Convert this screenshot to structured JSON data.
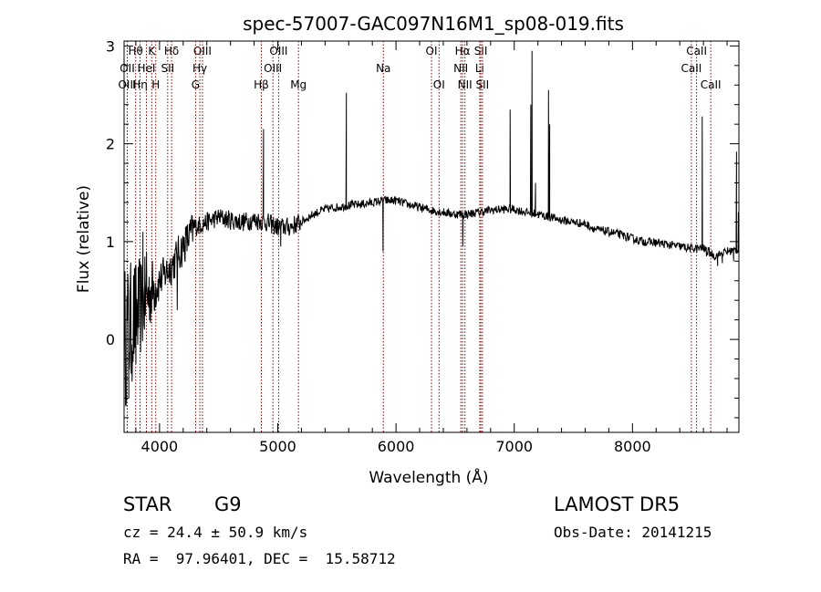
{
  "chart_data": {
    "type": "line",
    "title": "spec-57007-GAC097N16M1_sp08-019.fits",
    "xlabel": "Wavelength (Å)",
    "ylabel": "Flux (relative)",
    "xlim": [
      3700,
      8900
    ],
    "ylim": [
      -0.95,
      3.05
    ],
    "x_ticks": [
      4000,
      5000,
      6000,
      7000,
      8000
    ],
    "y_ticks": [
      0,
      1,
      2,
      3
    ],
    "grid": false,
    "legend": "none",
    "line_color": "#000000",
    "marker_color": "#8b0000",
    "continuum": [
      [
        3700,
        0.0
      ],
      [
        3800,
        0.25
      ],
      [
        3900,
        0.45
      ],
      [
        4000,
        0.6
      ],
      [
        4100,
        0.75
      ],
      [
        4200,
        0.95
      ],
      [
        4300,
        1.15
      ],
      [
        4400,
        1.2
      ],
      [
        4500,
        1.25
      ],
      [
        4600,
        1.22
      ],
      [
        4700,
        1.2
      ],
      [
        4800,
        1.22
      ],
      [
        4900,
        1.2
      ],
      [
        5000,
        1.15
      ],
      [
        5100,
        1.15
      ],
      [
        5200,
        1.2
      ],
      [
        5300,
        1.28
      ],
      [
        5400,
        1.33
      ],
      [
        5500,
        1.35
      ],
      [
        5600,
        1.37
      ],
      [
        5700,
        1.38
      ],
      [
        5800,
        1.4
      ],
      [
        5900,
        1.42
      ],
      [
        6000,
        1.42
      ],
      [
        6100,
        1.38
      ],
      [
        6200,
        1.35
      ],
      [
        6300,
        1.32
      ],
      [
        6400,
        1.3
      ],
      [
        6500,
        1.28
      ],
      [
        6600,
        1.28
      ],
      [
        6700,
        1.3
      ],
      [
        6800,
        1.32
      ],
      [
        6900,
        1.33
      ],
      [
        7000,
        1.33
      ],
      [
        7100,
        1.3
      ],
      [
        7200,
        1.28
      ],
      [
        7300,
        1.25
      ],
      [
        7400,
        1.22
      ],
      [
        7500,
        1.2
      ],
      [
        7600,
        1.18
      ],
      [
        7700,
        1.12
      ],
      [
        7800,
        1.1
      ],
      [
        7900,
        1.07
      ],
      [
        8000,
        1.03
      ],
      [
        8100,
        1.0
      ],
      [
        8200,
        0.99
      ],
      [
        8300,
        0.97
      ],
      [
        8400,
        0.95
      ],
      [
        8500,
        0.93
      ],
      [
        8600,
        0.93
      ],
      [
        8700,
        0.85
      ],
      [
        8800,
        0.9
      ],
      [
        8900,
        0.92
      ]
    ],
    "features": [
      [
        3740,
        -0.6
      ],
      [
        3760,
        -0.35
      ],
      [
        3800,
        -0.25
      ],
      [
        3860,
        1.1
      ],
      [
        3890,
        0.9
      ],
      [
        4150,
        0.3
      ],
      [
        4880,
        2.15
      ],
      [
        5025,
        0.95
      ],
      [
        5580,
        2.52
      ],
      [
        5890,
        0.9
      ],
      [
        6565,
        0.95
      ],
      [
        6965,
        2.35
      ],
      [
        7140,
        2.4
      ],
      [
        7150,
        2.95
      ],
      [
        7180,
        1.6
      ],
      [
        7290,
        2.55
      ],
      [
        7300,
        2.2
      ],
      [
        8590,
        2.28
      ],
      [
        8625,
        0.85
      ],
      [
        8720,
        0.75
      ],
      [
        8760,
        0.78
      ],
      [
        8855,
        0.8
      ],
      [
        8880,
        1.92
      ],
      [
        8895,
        1.3
      ]
    ],
    "line_markers": [
      {
        "label": "Hθ",
        "wavelength": 3798,
        "row": 0
      },
      {
        "label": "OII",
        "wavelength": 3727,
        "row": 1
      },
      {
        "label": "OIII",
        "wavelength": 3727,
        "row": 2
      },
      {
        "label": "K",
        "wavelength": 3934,
        "row": 0
      },
      {
        "label": "HeI",
        "wavelength": 3889,
        "row": 1
      },
      {
        "label": "Hη",
        "wavelength": 3835,
        "row": 2
      },
      {
        "label": "H",
        "wavelength": 3968,
        "row": 2
      },
      {
        "label": "Hδ",
        "wavelength": 4102,
        "row": 0
      },
      {
        "label": "SII",
        "wavelength": 4069,
        "row": 1
      },
      {
        "label": "OIII",
        "wavelength": 4363,
        "row": 0
      },
      {
        "label": "Hγ",
        "wavelength": 4341,
        "row": 1
      },
      {
        "label": "G",
        "wavelength": 4305,
        "row": 2
      },
      {
        "label": "Hβ",
        "wavelength": 4861,
        "row": 2
      },
      {
        "label": "OIII",
        "wavelength": 5007,
        "row": 0
      },
      {
        "label": "OIII",
        "wavelength": 4959,
        "row": 1
      },
      {
        "label": "Mg",
        "wavelength": 5175,
        "row": 2
      },
      {
        "label": "Na",
        "wavelength": 5893,
        "row": 1
      },
      {
        "label": "OI",
        "wavelength": 6300,
        "row": 0
      },
      {
        "label": "OI",
        "wavelength": 6364,
        "row": 2
      },
      {
        "label": "Hα",
        "wavelength": 6563,
        "row": 0
      },
      {
        "label": "NII",
        "wavelength": 6548,
        "row": 1
      },
      {
        "label": "NII",
        "wavelength": 6583,
        "row": 2
      },
      {
        "label": "SII",
        "wavelength": 6717,
        "row": 0
      },
      {
        "label": "Li",
        "wavelength": 6708,
        "row": 1
      },
      {
        "label": "SII",
        "wavelength": 6731,
        "row": 2
      },
      {
        "label": "CaII",
        "wavelength": 8542,
        "row": 0
      },
      {
        "label": "CaII",
        "wavelength": 8498,
        "row": 1
      },
      {
        "label": "CaII",
        "wavelength": 8662,
        "row": 2
      }
    ]
  },
  "info": {
    "class": "STAR",
    "subclass": "G9",
    "survey": "LAMOST DR5",
    "velocity": "cz = 24.4 ± 50.9 km/s",
    "obs_date": "Obs-Date: 20141215",
    "coords": "RA =  97.96401, DEC =  15.58712"
  }
}
